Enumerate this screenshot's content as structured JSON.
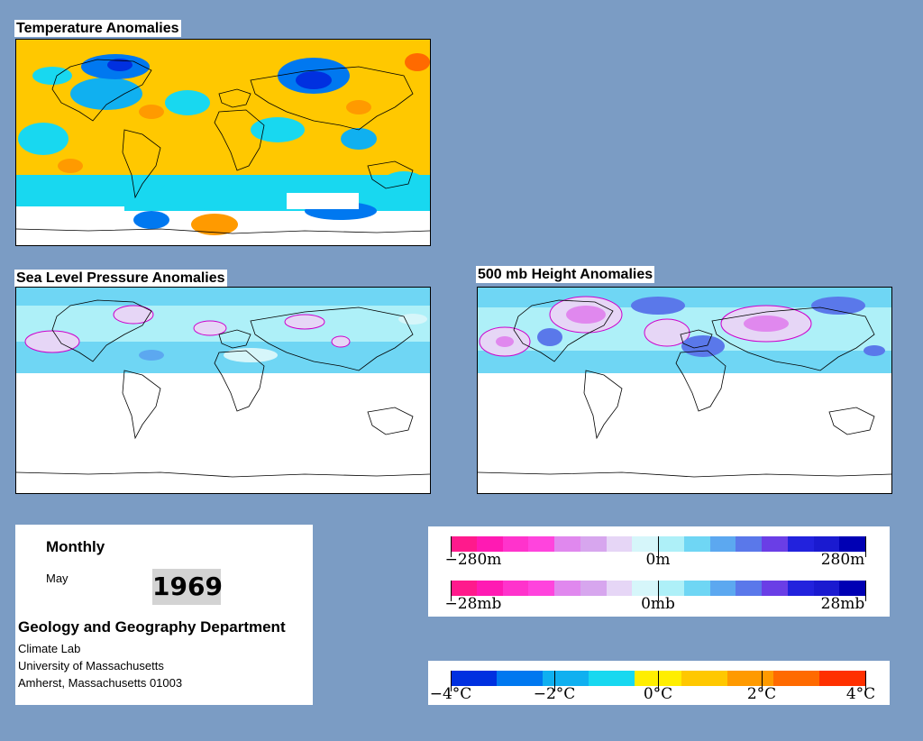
{
  "maps": {
    "temperature": {
      "title": "Temperature Anomalies"
    },
    "slp": {
      "title": "Sea Level Pressure Anomalies"
    },
    "height500": {
      "title": "500 mb Height Anomalies"
    }
  },
  "info": {
    "period": "Monthly",
    "month": "May",
    "year": "1969",
    "department": "Geology and Geography Department",
    "lab": "Climate Lab",
    "university": "University of Massachusetts",
    "address": "Amherst, Massachusetts 01003"
  },
  "legends": {
    "height_scale": {
      "labels": [
        "−280m",
        "0m",
        "280m"
      ]
    },
    "pressure_scale": {
      "labels": [
        "−28mb",
        "0mb",
        "28mb"
      ]
    },
    "temperature_scale": {
      "labels": [
        "−4°C",
        "−2°C",
        "0°C",
        "2°C",
        "4°C"
      ]
    }
  },
  "colors": {
    "background": "#7b9cc4",
    "anomaly_scale": [
      "#ff1a8c",
      "#ff1ab3",
      "#ff33cc",
      "#ff44dd",
      "#e088ee",
      "#d7a6ee",
      "#e6d6f6",
      "#d6f6fa",
      "#aef0f8",
      "#6fd6f4",
      "#5ca8f0",
      "#5a78ea",
      "#6a3ee6",
      "#2222dd",
      "#1a1ad0",
      "#0000b4"
    ],
    "temperature_scale": [
      "#0030e0",
      "#0078f0",
      "#10b0f0",
      "#18d8f0",
      "#ffee00",
      "#ffc800",
      "#ff9a00",
      "#ff6a00",
      "#ff3000"
    ]
  }
}
